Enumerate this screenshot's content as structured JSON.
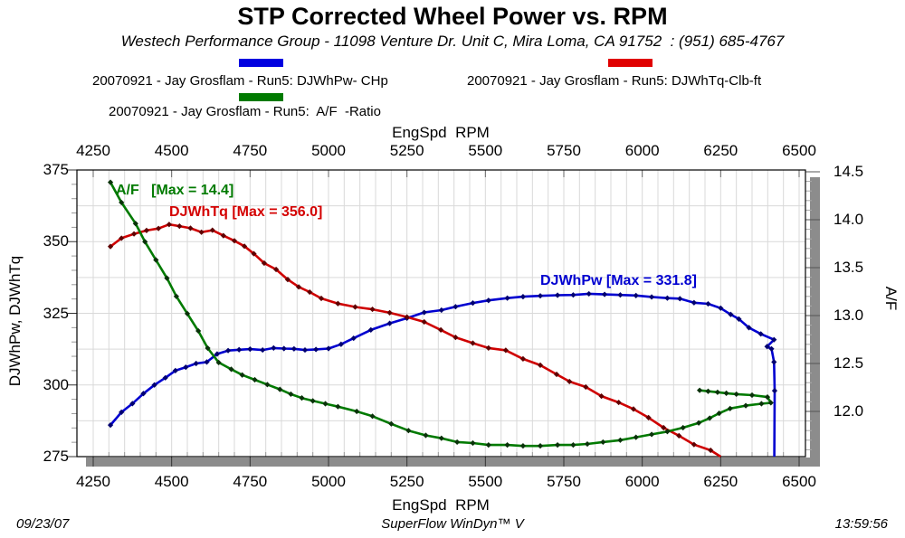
{
  "header": {
    "title": "STP Corrected Wheel Power vs. RPM",
    "subtitle": "Westech Performance Group - 11098 Venture Dr. Unit C, Mira Loma, CA 91752  : (951) 685-4767"
  },
  "legend": {
    "entries": [
      {
        "label": "20070921 - Jay Grosflam - Run5: DJWhPw- CHp",
        "color": "#0000e0"
      },
      {
        "label": "20070921 - Jay Grosflam - Run5: DJWhTq-Clb-ft",
        "color": "#e00000"
      },
      {
        "label": "20070921 - Jay Grosflam - Run5:  A/F  -Ratio",
        "color": "#007a00"
      }
    ]
  },
  "axes": {
    "top": {
      "title": "EngSpd  RPM",
      "ticks": [
        4250,
        4500,
        4750,
        5000,
        5250,
        5500,
        5750,
        6000,
        6250,
        6500
      ]
    },
    "bottom": {
      "title": "EngSpd  RPM",
      "ticks": [
        4250,
        4500,
        4750,
        5000,
        5250,
        5500,
        5750,
        6000,
        6250,
        6500
      ]
    },
    "left": {
      "title": "DJWhPw, DJWhTq",
      "ticks": [
        375,
        350,
        325,
        300,
        275
      ]
    },
    "right": {
      "title": "A/F",
      "ticks": [
        14.5,
        14.0,
        13.5,
        13.0,
        12.5,
        12.0
      ]
    }
  },
  "annotations": [
    {
      "text": "A/F   [Max = 14.4]",
      "color": "#007a00"
    },
    {
      "text": "DJWhTq [Max = 356.0]",
      "color": "#d40000"
    },
    {
      "text": "DJWhPw [Max = 331.8]",
      "color": "#0000d0"
    }
  ],
  "footer": {
    "date": "09/23/07",
    "app": "SuperFlow WinDyn™ V",
    "time": "13:59:56"
  },
  "chart_data": {
    "type": "line",
    "title": "STP Corrected Wheel Power vs. RPM",
    "xlabel": "EngSpd RPM",
    "ylabel_left": "DJWhPw, DJWhTq",
    "ylabel_right": "A/F",
    "xlim": [
      4200,
      6520
    ],
    "ylim_left": [
      275,
      375
    ],
    "ylim_right": [
      11.5,
      14.5
    ],
    "grid": "on",
    "legend_position": "top",
    "series": [
      {
        "name": "20070921 - Jay Grosflam - Run5: DJWhPw- CHp",
        "axis": "left",
        "units": "CHp",
        "max": 331.8,
        "color": "#0000d0",
        "marker_color": "#000070",
        "points": [
          [
            4305,
            286
          ],
          [
            4340,
            290.5
          ],
          [
            4375,
            293.5
          ],
          [
            4410,
            297
          ],
          [
            4445,
            300
          ],
          [
            4480,
            302.5
          ],
          [
            4512,
            305
          ],
          [
            4545,
            306.2
          ],
          [
            4578,
            307.5
          ],
          [
            4612,
            308
          ],
          [
            4645,
            310.8
          ],
          [
            4680,
            312
          ],
          [
            4715,
            312.3
          ],
          [
            4750,
            312.5
          ],
          [
            4790,
            312.2
          ],
          [
            4825,
            312.9
          ],
          [
            4858,
            312.7
          ],
          [
            4890,
            312.6
          ],
          [
            4925,
            312.2
          ],
          [
            4960,
            312.4
          ],
          [
            5000,
            312.7
          ],
          [
            5040,
            314.2
          ],
          [
            5080,
            316.3
          ],
          [
            5135,
            319.2
          ],
          [
            5195,
            321.5
          ],
          [
            5250,
            323.3
          ],
          [
            5305,
            325.3
          ],
          [
            5360,
            326.1
          ],
          [
            5405,
            327.3
          ],
          [
            5460,
            328.6
          ],
          [
            5510,
            329.5
          ],
          [
            5570,
            330.3
          ],
          [
            5620,
            330.8
          ],
          [
            5675,
            331.1
          ],
          [
            5730,
            331.3
          ],
          [
            5780,
            331.4
          ],
          [
            5830,
            331.8
          ],
          [
            5880,
            331.6
          ],
          [
            5930,
            331.4
          ],
          [
            5980,
            331.2
          ],
          [
            6030,
            330.7
          ],
          [
            6080,
            330.3
          ],
          [
            6120,
            330.1
          ],
          [
            6165,
            328.7
          ],
          [
            6210,
            328.3
          ],
          [
            6250,
            326.8
          ],
          [
            6282,
            324.6
          ],
          [
            6308,
            323
          ],
          [
            6340,
            320
          ],
          [
            6378,
            317.8
          ],
          [
            6420,
            315.8
          ],
          [
            6398,
            313.4
          ],
          [
            6412,
            312.6
          ],
          [
            6420,
            308
          ],
          [
            6422,
            298
          ],
          [
            6421,
            275
          ]
        ]
      },
      {
        "name": "20070921 - Jay Grosflam - Run5: DJWhTq-Clb-ft",
        "axis": "left",
        "units": "Clb-ft",
        "max": 356.0,
        "color": "#cf0000",
        "marker_color": "#5f0000",
        "points": [
          [
            4305,
            348.3
          ],
          [
            4340,
            351.2
          ],
          [
            4380,
            352.7
          ],
          [
            4420,
            353.9
          ],
          [
            4458,
            354.6
          ],
          [
            4492,
            356
          ],
          [
            4525,
            355.4
          ],
          [
            4560,
            354.7
          ],
          [
            4595,
            353.3
          ],
          [
            4630,
            354
          ],
          [
            4665,
            352.1
          ],
          [
            4700,
            350.3
          ],
          [
            4732,
            348.4
          ],
          [
            4762,
            345.8
          ],
          [
            4795,
            342.5
          ],
          [
            4833,
            340.3
          ],
          [
            4870,
            336.8
          ],
          [
            4905,
            334.2
          ],
          [
            4940,
            332.4
          ],
          [
            4977,
            330.2
          ],
          [
            5030,
            328.4
          ],
          [
            5085,
            327.2
          ],
          [
            5140,
            326.4
          ],
          [
            5195,
            325.2
          ],
          [
            5250,
            323.7
          ],
          [
            5305,
            322
          ],
          [
            5358,
            319.2
          ],
          [
            5405,
            316.6
          ],
          [
            5460,
            314.6
          ],
          [
            5510,
            312.9
          ],
          [
            5565,
            312.1
          ],
          [
            5620,
            309.1
          ],
          [
            5675,
            306.9
          ],
          [
            5727,
            303.7
          ],
          [
            5768,
            301.2
          ],
          [
            5820,
            299.3
          ],
          [
            5870,
            296.1
          ],
          [
            5925,
            293.9
          ],
          [
            5972,
            291.6
          ],
          [
            6020,
            288.6
          ],
          [
            6068,
            285.1
          ],
          [
            6117,
            282.3
          ],
          [
            6165,
            279.2
          ],
          [
            6218,
            277.2
          ],
          [
            6250,
            275
          ]
        ]
      },
      {
        "name": "20070921 - Jay Grosflam - Run5:  A/F  -Ratio",
        "axis": "right",
        "units": "A/F",
        "max": 14.4,
        "color": "#007a00",
        "marker_color": "#0a320a",
        "points": [
          [
            4305,
            14.39
          ],
          [
            4340,
            14.18
          ],
          [
            4385,
            13.96
          ],
          [
            4415,
            13.77
          ],
          [
            4450,
            13.58
          ],
          [
            4485,
            13.39
          ],
          [
            4515,
            13.2
          ],
          [
            4550,
            13.02
          ],
          [
            4585,
            12.84
          ],
          [
            4615,
            12.66
          ],
          [
            4650,
            12.51
          ],
          [
            4690,
            12.44
          ],
          [
            4725,
            12.38
          ],
          [
            4765,
            12.33
          ],
          [
            4805,
            12.28
          ],
          [
            4845,
            12.23
          ],
          [
            4880,
            12.18
          ],
          [
            4915,
            12.14
          ],
          [
            4950,
            12.11
          ],
          [
            4990,
            12.08
          ],
          [
            5030,
            12.05
          ],
          [
            5090,
            12.0
          ],
          [
            5140,
            11.95
          ],
          [
            5200,
            11.87
          ],
          [
            5255,
            11.8
          ],
          [
            5310,
            11.75
          ],
          [
            5360,
            11.72
          ],
          [
            5410,
            11.68
          ],
          [
            5460,
            11.67
          ],
          [
            5510,
            11.65
          ],
          [
            5570,
            11.65
          ],
          [
            5620,
            11.64
          ],
          [
            5675,
            11.64
          ],
          [
            5730,
            11.65
          ],
          [
            5780,
            11.65
          ],
          [
            5825,
            11.66
          ],
          [
            5875,
            11.68
          ],
          [
            5930,
            11.7
          ],
          [
            5980,
            11.73
          ],
          [
            6030,
            11.76
          ],
          [
            6080,
            11.79
          ],
          [
            6130,
            11.83
          ],
          [
            6180,
            11.88
          ],
          [
            6215,
            11.93
          ],
          [
            6245,
            11.98
          ],
          [
            6280,
            12.03
          ],
          [
            6330,
            12.06
          ],
          [
            6380,
            12.08
          ],
          [
            6410,
            12.09
          ],
          [
            6399,
            12.15
          ],
          [
            6350,
            12.17
          ],
          [
            6300,
            12.18
          ],
          [
            6268,
            12.19
          ],
          [
            6240,
            12.2
          ],
          [
            6210,
            12.21
          ],
          [
            6183,
            12.22
          ]
        ]
      }
    ]
  }
}
